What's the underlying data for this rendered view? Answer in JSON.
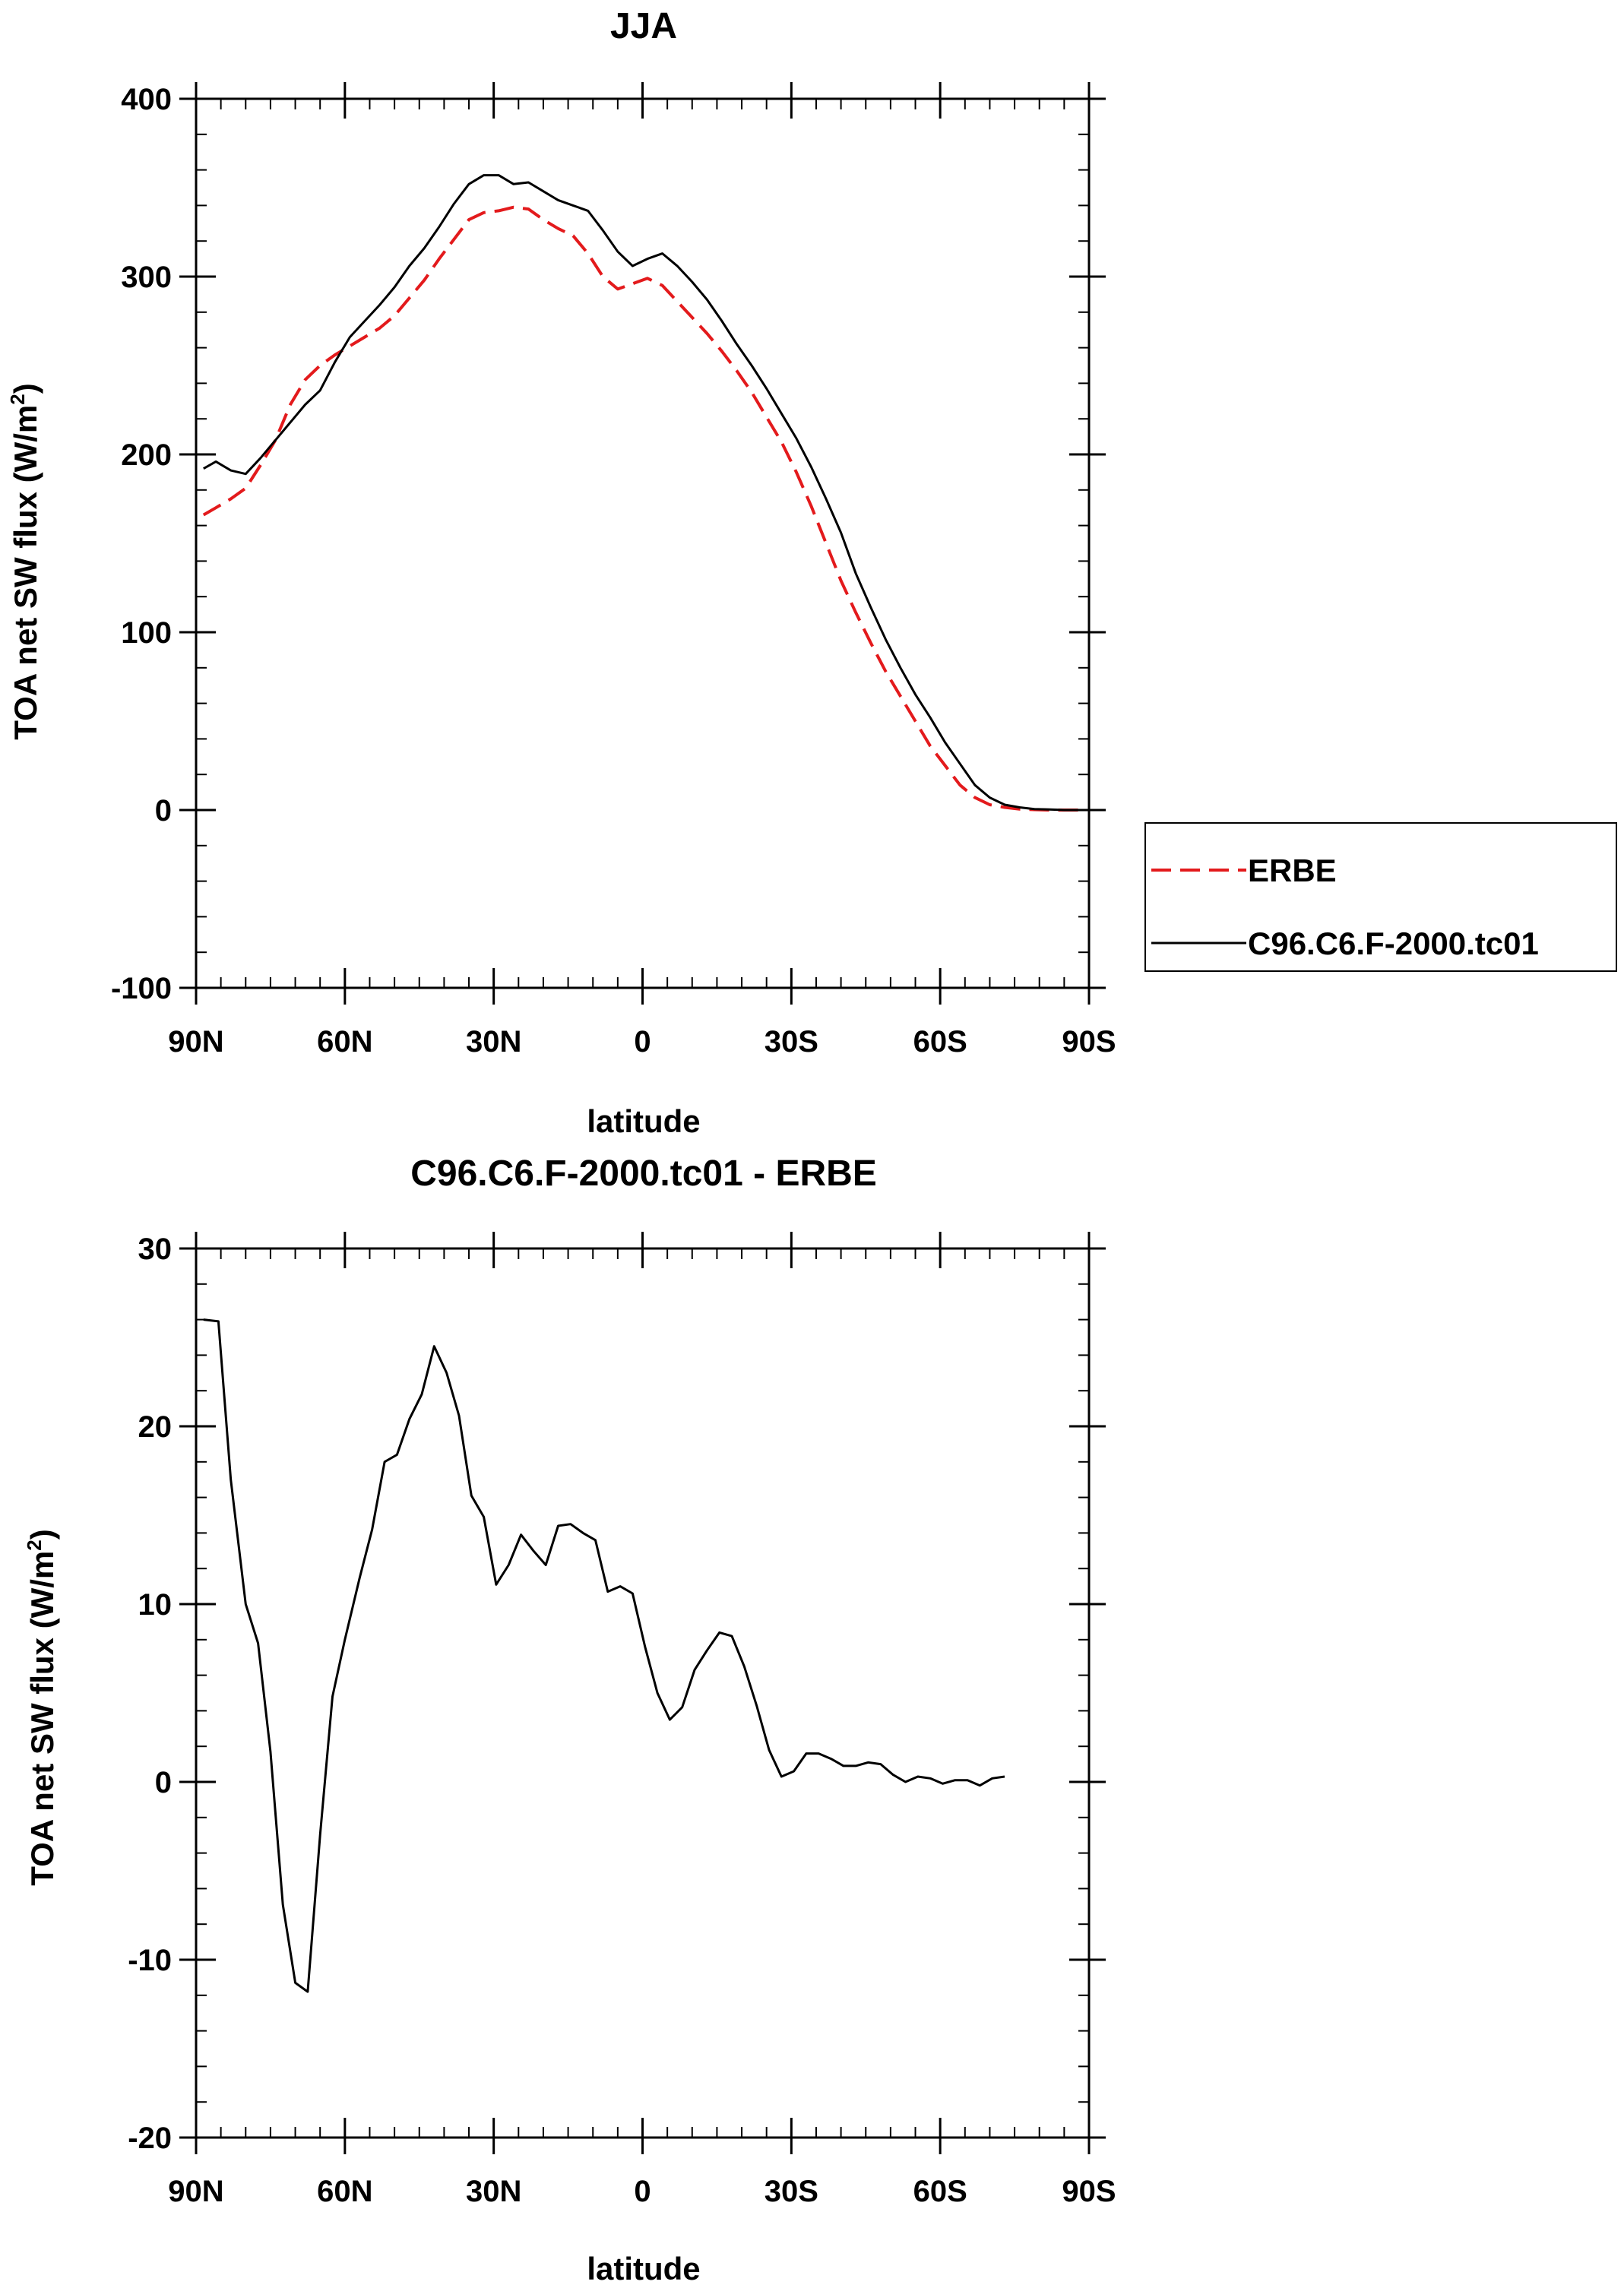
{
  "chart_data": [
    {
      "type": "line",
      "title": "JJA",
      "xlabel": "latitude",
      "ylabel_main": "TOA net SW flux (W/m",
      "ylabel_sup": "2",
      "ylabel_close": ")",
      "xlim": [
        90,
        -90
      ],
      "ylim": [
        -100,
        400
      ],
      "x_ticks": [
        {
          "value": 90,
          "label": "90N"
        },
        {
          "value": 60,
          "label": "60N"
        },
        {
          "value": 30,
          "label": "30N"
        },
        {
          "value": 0,
          "label": "0"
        },
        {
          "value": -30,
          "label": "30S"
        },
        {
          "value": -60,
          "label": "60S"
        },
        {
          "value": -90,
          "label": "90S"
        }
      ],
      "y_ticks": [
        {
          "value": -100,
          "label": "-100"
        },
        {
          "value": 0,
          "label": "0"
        },
        {
          "value": 100,
          "label": "100"
        },
        {
          "value": 200,
          "label": "200"
        },
        {
          "value": 300,
          "label": "300"
        },
        {
          "value": 400,
          "label": "400"
        }
      ],
      "legend_position": "right",
      "series": [
        {
          "name": "ERBE",
          "color": "#e31a1c",
          "dash": "dashed",
          "points": [
            [
              88.5,
              166
            ],
            [
              86,
              170
            ],
            [
              83,
              175
            ],
            [
              80,
              181
            ],
            [
              77,
              194
            ],
            [
              74,
              208
            ],
            [
              71,
              228
            ],
            [
              68,
              242
            ],
            [
              65,
              250
            ],
            [
              62,
              256
            ],
            [
              59,
              261
            ],
            [
              56,
              266
            ],
            [
              53,
              271
            ],
            [
              50,
              278
            ],
            [
              47,
              288
            ],
            [
              44,
              298
            ],
            [
              41,
              310
            ],
            [
              38,
              321
            ],
            [
              35,
              332
            ],
            [
              32,
              336
            ],
            [
              29,
              337
            ],
            [
              26,
              339
            ],
            [
              23,
              338
            ],
            [
              20,
              332
            ],
            [
              17,
              327
            ],
            [
              14,
              323
            ],
            [
              11,
              313
            ],
            [
              8,
              300
            ],
            [
              5,
              293
            ],
            [
              2,
              296
            ],
            [
              -1,
              299
            ],
            [
              -4,
              295
            ],
            [
              -7,
              286
            ],
            [
              -10,
              277
            ],
            [
              -13,
              268
            ],
            [
              -16,
              258
            ],
            [
              -19,
              247
            ],
            [
              -22,
              235
            ],
            [
              -25,
              221
            ],
            [
              -28,
              207
            ],
            [
              -31,
              190
            ],
            [
              -34,
              171
            ],
            [
              -37,
              150
            ],
            [
              -40,
              129
            ],
            [
              -43,
              111
            ],
            [
              -46,
              94
            ],
            [
              -49,
              78
            ],
            [
              -52,
              64
            ],
            [
              -55,
              50
            ],
            [
              -58,
              36
            ],
            [
              -61,
              25
            ],
            [
              -64,
              14
            ],
            [
              -67,
              7
            ],
            [
              -70,
              3
            ],
            [
              -73,
              1.5
            ],
            [
              -76,
              0.5
            ],
            [
              -79,
              0.2
            ],
            [
              -82,
              0
            ],
            [
              -85,
              0
            ],
            [
              -88.5,
              0
            ]
          ]
        },
        {
          "name": "C96.C6.F-2000.tc01",
          "color": "#000000",
          "dash": "solid",
          "points": [
            [
              88.5,
              192
            ],
            [
              86,
              196
            ],
            [
              83,
              191
            ],
            [
              80,
              189
            ],
            [
              77,
              198
            ],
            [
              74,
              208
            ],
            [
              71,
              218
            ],
            [
              68,
              228
            ],
            [
              65,
              236
            ],
            [
              62,
              252
            ],
            [
              59,
              266
            ],
            [
              56,
              275
            ],
            [
              53,
              284
            ],
            [
              50,
              294
            ],
            [
              47,
              306
            ],
            [
              44,
              316
            ],
            [
              41,
              328
            ],
            [
              38,
              341
            ],
            [
              35,
              352
            ],
            [
              32,
              357
            ],
            [
              29,
              357
            ],
            [
              26,
              352
            ],
            [
              23,
              353
            ],
            [
              20,
              348
            ],
            [
              17,
              343
            ],
            [
              14,
              340
            ],
            [
              11,
              337
            ],
            [
              8,
              326
            ],
            [
              5,
              314
            ],
            [
              2,
              306
            ],
            [
              -1,
              310
            ],
            [
              -4,
              313
            ],
            [
              -7,
              306
            ],
            [
              -10,
              297
            ],
            [
              -13,
              287
            ],
            [
              -16,
              275
            ],
            [
              -19,
              262
            ],
            [
              -22,
              250
            ],
            [
              -25,
              237
            ],
            [
              -28,
              223
            ],
            [
              -31,
              209
            ],
            [
              -34,
              193
            ],
            [
              -37,
              175
            ],
            [
              -40,
              156
            ],
            [
              -43,
              133
            ],
            [
              -46,
              114
            ],
            [
              -49,
              96
            ],
            [
              -52,
              80
            ],
            [
              -55,
              65
            ],
            [
              -58,
              52
            ],
            [
              -61,
              38
            ],
            [
              -64,
              26
            ],
            [
              -67,
              14
            ],
            [
              -70,
              7
            ],
            [
              -73,
              3
            ],
            [
              -76,
              1.5
            ],
            [
              -79,
              0.5
            ],
            [
              -82,
              0.3
            ],
            [
              -85,
              0
            ],
            [
              -88.5,
              0
            ]
          ]
        }
      ]
    },
    {
      "type": "line",
      "title": "C96.C6.F-2000.tc01 - ERBE",
      "xlabel": "latitude",
      "ylabel_main": "TOA net SW flux (W/m",
      "ylabel_sup": "2",
      "ylabel_close": ")",
      "xlim": [
        90,
        -90
      ],
      "ylim": [
        -20,
        30
      ],
      "x_ticks": [
        {
          "value": 90,
          "label": "90N"
        },
        {
          "value": 60,
          "label": "60N"
        },
        {
          "value": 30,
          "label": "30N"
        },
        {
          "value": 0,
          "label": "0"
        },
        {
          "value": -30,
          "label": "30S"
        },
        {
          "value": -60,
          "label": "60S"
        },
        {
          "value": -90,
          "label": "90S"
        }
      ],
      "y_ticks": [
        {
          "value": -20,
          "label": "-20"
        },
        {
          "value": -10,
          "label": "-10"
        },
        {
          "value": 0,
          "label": "0"
        },
        {
          "value": 10,
          "label": "10"
        },
        {
          "value": 20,
          "label": "20"
        },
        {
          "value": 30,
          "label": "30"
        }
      ],
      "series": [
        {
          "color": "#000000",
          "dash": "solid",
          "points": [
            [
              88.5,
              26
            ],
            [
              85.5,
              25.9
            ],
            [
              83,
              17
            ],
            [
              80,
              10
            ],
            [
              77.5,
              7.8
            ],
            [
              75,
              1.7
            ],
            [
              72.5,
              -6.9
            ],
            [
              70,
              -11.3
            ],
            [
              67.5,
              -11.8
            ],
            [
              65,
              -3
            ],
            [
              62.5,
              4.8
            ],
            [
              60,
              8
            ],
            [
              57,
              11.5
            ],
            [
              54.5,
              14.2
            ],
            [
              52,
              18
            ],
            [
              49.5,
              18.4
            ],
            [
              47,
              20.4
            ],
            [
              44.5,
              21.8
            ],
            [
              42,
              24.5
            ],
            [
              39.5,
              23
            ],
            [
              37,
              20.6
            ],
            [
              34.5,
              16.1
            ],
            [
              32,
              14.9
            ],
            [
              29.5,
              11.1
            ],
            [
              27,
              12.2
            ],
            [
              24.5,
              13.9
            ],
            [
              22,
              13
            ],
            [
              19.5,
              12.2
            ],
            [
              17,
              14.4
            ],
            [
              14.5,
              14.5
            ],
            [
              12,
              14
            ],
            [
              9.5,
              13.6
            ],
            [
              7,
              10.7
            ],
            [
              4.5,
              11
            ],
            [
              2,
              10.6
            ],
            [
              -0.5,
              7.6
            ],
            [
              -3,
              5
            ],
            [
              -5.5,
              3.5
            ],
            [
              -8,
              4.2
            ],
            [
              -10.5,
              6.3
            ],
            [
              -13,
              7.4
            ],
            [
              -15.5,
              8.4
            ],
            [
              -18,
              8.2
            ],
            [
              -20.5,
              6.5
            ],
            [
              -23,
              4.3
            ],
            [
              -25.5,
              1.8
            ],
            [
              -28,
              0.3
            ],
            [
              -30.5,
              0.6
            ],
            [
              -33,
              1.6
            ],
            [
              -35.5,
              1.6
            ],
            [
              -38,
              1.3
            ],
            [
              -40.5,
              0.9
            ],
            [
              -43,
              0.9
            ],
            [
              -45.5,
              1.1
            ],
            [
              -48,
              1
            ],
            [
              -50.5,
              0.4
            ],
            [
              -53,
              0
            ],
            [
              -55.5,
              0.3
            ],
            [
              -58,
              0.2
            ],
            [
              -60.5,
              -0.1
            ],
            [
              -63,
              0.1
            ],
            [
              -65.5,
              0.1
            ],
            [
              -68,
              -0.2
            ],
            [
              -70.5,
              0.2
            ],
            [
              -73,
              0.3
            ]
          ]
        }
      ]
    }
  ]
}
